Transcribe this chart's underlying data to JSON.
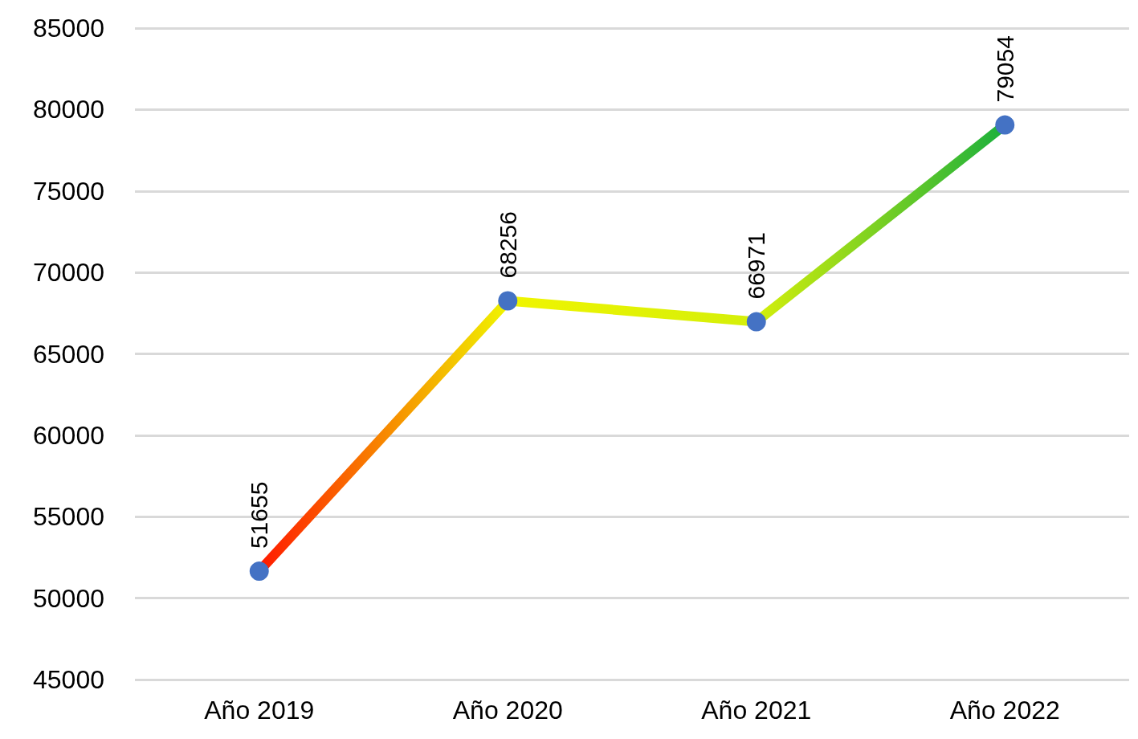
{
  "chart_data": {
    "type": "line",
    "categories": [
      "Año 2019",
      "Año 2020",
      "Año 2021",
      "Año 2022"
    ],
    "series": [
      {
        "color": "#4472c4",
        "colors": [
          "#ff1a00",
          "#f0f500",
          "#d4ef0a",
          "#1bb03c"
        ],
        "values": [
          51655,
          68256,
          66971,
          79054
        ]
      }
    ],
    "ylim": [
      45000,
      85000
    ],
    "yticks": [
      45000,
      50000,
      55000,
      60000,
      65000,
      70000,
      75000,
      80000,
      85000
    ],
    "grid": "y",
    "marker": "circle",
    "line_style": "solid",
    "data_labels": true
  }
}
